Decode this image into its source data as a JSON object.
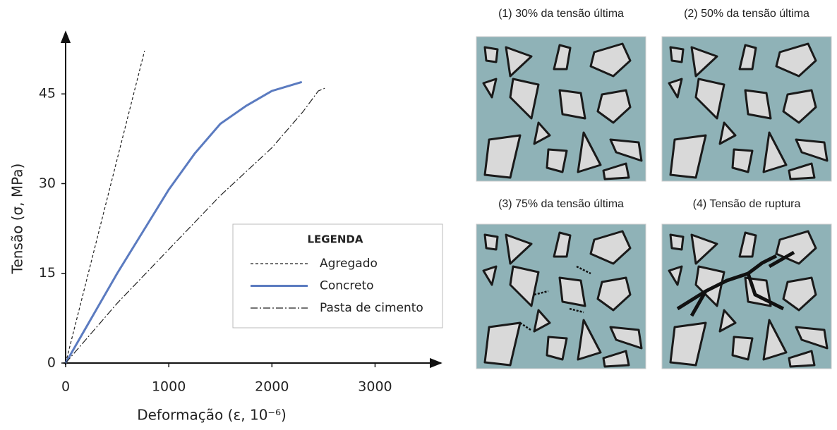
{
  "chart_data": {
    "type": "line",
    "x_label": "Deformação (ε, 10⁻⁶)",
    "y_label": "Tensão (σ, MPa)",
    "legend_title": "LEGENDA",
    "legend_position": "lower right",
    "grid": false,
    "xlim": [
      0,
      3640
    ],
    "ylim": [
      0,
      55.4
    ],
    "xticks": [
      0,
      1000,
      2000,
      3000
    ],
    "yticks": [
      0,
      15,
      30,
      45
    ],
    "series": [
      {
        "name": "Agregado",
        "color": "#222222",
        "dash": "dashed",
        "x": [
          0,
          765
        ],
        "values": [
          0,
          52.2
        ]
      },
      {
        "name": "Concreto",
        "color": "#5b7bc0",
        "dash": "solid",
        "x": [
          0,
          250,
          500,
          750,
          1000,
          1250,
          1500,
          1750,
          2000,
          2290
        ],
        "values": [
          0,
          7.5,
          15,
          22,
          29,
          35,
          40,
          43,
          45.5,
          47
        ]
      },
      {
        "name": "Pasta de cimento",
        "color": "#222222",
        "dash": "dashdot",
        "x": [
          0,
          500,
          1000,
          1500,
          2000,
          2300,
          2450,
          2520
        ],
        "values": [
          0,
          10,
          19,
          28,
          36,
          42,
          45.5,
          46
        ]
      }
    ]
  },
  "panels": [
    {
      "caption": "(1) 30% da tensão última"
    },
    {
      "caption": "(2) 50% da tensão última"
    },
    {
      "caption": "(3) 75% da tensão última"
    },
    {
      "caption": "(4) Tensão de ruptura"
    }
  ]
}
